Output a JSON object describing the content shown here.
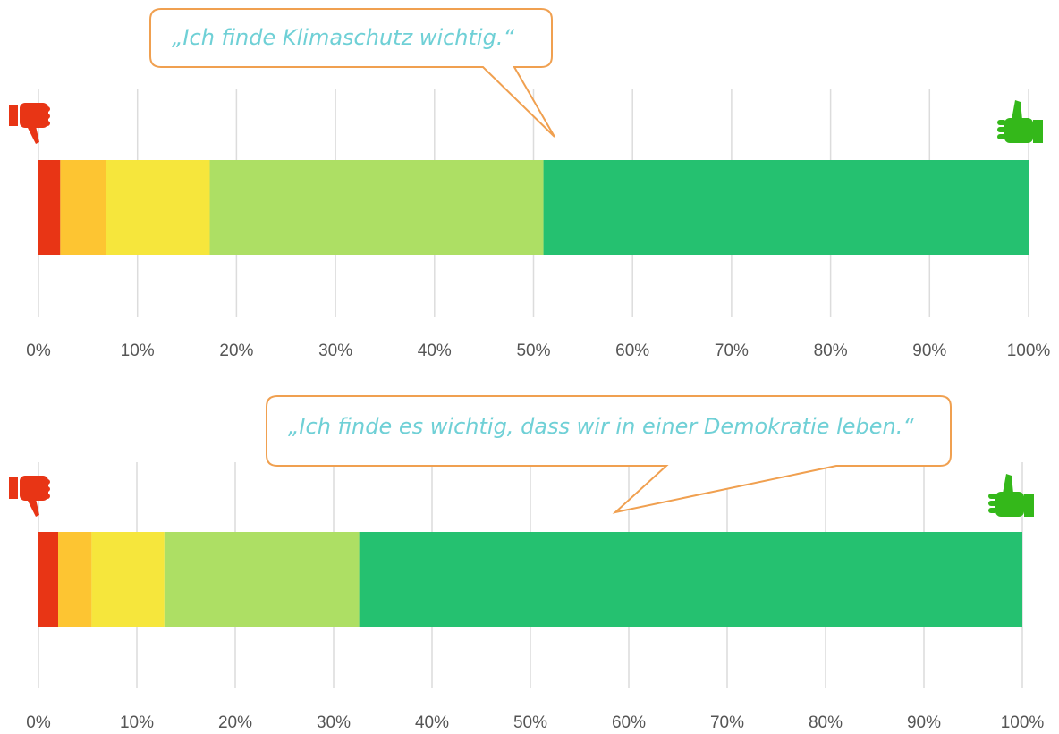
{
  "chart_data": [
    {
      "type": "stacked-bar-horizontal",
      "annotation": "„Ich finde Klimaschutz wichtig.“",
      "series": [
        {
          "color": "#e83515",
          "values": [
            2.2
          ]
        },
        {
          "color": "#fdc532",
          "values": [
            4.6
          ]
        },
        {
          "color": "#f6e63c",
          "values": [
            10.5
          ]
        },
        {
          "color": "#addf64",
          "values": [
            33.7
          ]
        },
        {
          "color": "#25c170",
          "values": [
            49.0
          ]
        }
      ],
      "xlim": [
        0,
        100
      ],
      "xticks": [
        {
          "value": 0,
          "label": "0%"
        },
        {
          "value": 10,
          "label": "10%"
        },
        {
          "value": 20,
          "label": "20%"
        },
        {
          "value": 30,
          "label": "30%"
        },
        {
          "value": 40,
          "label": "40%"
        },
        {
          "value": 50,
          "label": "50%"
        },
        {
          "value": 60,
          "label": "60%"
        },
        {
          "value": 70,
          "label": "70%"
        },
        {
          "value": 80,
          "label": "80%"
        },
        {
          "value": 90,
          "label": "90%"
        },
        {
          "value": 100,
          "label": "100%"
        }
      ],
      "grid": true
    },
    {
      "type": "stacked-bar-horizontal",
      "annotation": "„Ich finde es wichtig, dass wir in einer Demokratie leben.“",
      "series": [
        {
          "color": "#e83515",
          "values": [
            2.0
          ]
        },
        {
          "color": "#fdc532",
          "values": [
            3.4
          ]
        },
        {
          "color": "#f6e63c",
          "values": [
            7.4
          ]
        },
        {
          "color": "#addf64",
          "values": [
            19.8
          ]
        },
        {
          "color": "#25c170",
          "values": [
            67.4
          ]
        }
      ],
      "xlim": [
        0,
        100
      ],
      "xticks": [
        {
          "value": 0,
          "label": "0%"
        },
        {
          "value": 10,
          "label": "10%"
        },
        {
          "value": 20,
          "label": "20%"
        },
        {
          "value": 30,
          "label": "30%"
        },
        {
          "value": 40,
          "label": "40%"
        },
        {
          "value": 50,
          "label": "50%"
        },
        {
          "value": 60,
          "label": "60%"
        },
        {
          "value": 70,
          "label": "70%"
        },
        {
          "value": 80,
          "label": "80%"
        },
        {
          "value": 90,
          "label": "90%"
        },
        {
          "value": 100,
          "label": "100%"
        }
      ],
      "grid": true
    }
  ]
}
